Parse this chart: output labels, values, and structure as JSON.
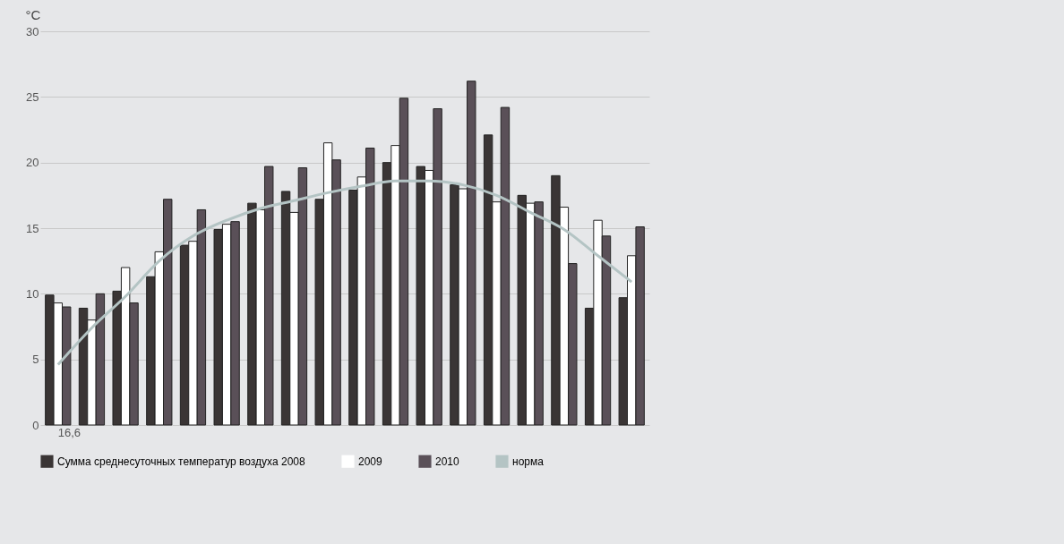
{
  "chart_data": {
    "type": "bar",
    "ylabel": "°C",
    "categories": [
      "16,6",
      null,
      null,
      null,
      null,
      null,
      null,
      null,
      null,
      null,
      null,
      null,
      null,
      null,
      null,
      null,
      null,
      null
    ],
    "series": [
      {
        "name": "Сумма среднесуточных температур воздуха 2008",
        "color": "#3a3535",
        "values": [
          9.9,
          8.9,
          10.2,
          11.3,
          13.7,
          14.9,
          16.9,
          17.8,
          17.2,
          17.9,
          20.0,
          19.7,
          18.3,
          22.1,
          17.5,
          19.0,
          8.9,
          9.7
        ]
      },
      {
        "name": "2009",
        "color": "#ffffff",
        "values": [
          9.3,
          8.0,
          12.0,
          13.2,
          14.0,
          15.3,
          16.4,
          16.2,
          21.5,
          18.9,
          21.3,
          19.4,
          18.0,
          17.0,
          16.9,
          16.6,
          15.6,
          12.9
        ]
      },
      {
        "name": "2010",
        "color": "#5a5058",
        "values": [
          9.0,
          10.0,
          9.3,
          17.2,
          16.4,
          15.5,
          19.7,
          19.6,
          20.2,
          21.1,
          24.9,
          24.1,
          26.2,
          24.2,
          17.0,
          12.3,
          14.4,
          15.1
        ]
      },
      {
        "name": "норма",
        "type": "line",
        "color": "#b4c4c4",
        "values": [
          4.6,
          7.4,
          9.8,
          12.5,
          14.4,
          15.6,
          16.5,
          17.1,
          17.7,
          18.2,
          18.6,
          18.6,
          18.3,
          17.5,
          16.2,
          14.9,
          12.9,
          10.9
        ]
      }
    ],
    "ylim": [
      0,
      30
    ],
    "yticks": [
      0,
      5,
      10,
      15,
      20,
      25,
      30
    ],
    "grid": "y",
    "legend": "bottom"
  }
}
